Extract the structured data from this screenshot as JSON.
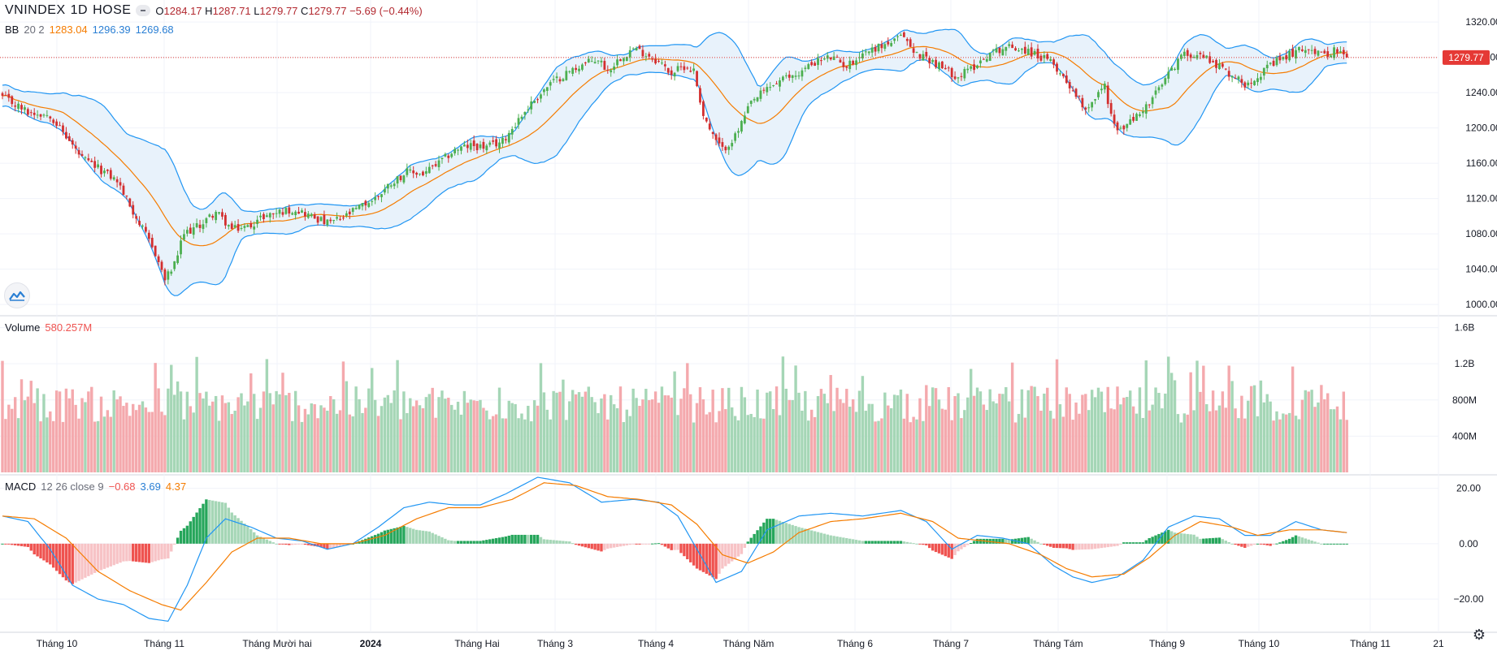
{
  "header": {
    "symbol": "VNINDEX",
    "interval": "1D",
    "exchange": "HOSE",
    "ohlc": {
      "o_label": "O",
      "o": "1284.17",
      "h_label": "H",
      "h": "1287.71",
      "l_label": "L",
      "l": "1279.77",
      "c_label": "C",
      "c": "1279.77",
      "change": "−5.69 (−0.44%)"
    }
  },
  "indicators": {
    "bb": {
      "label": "BB",
      "params": "20 2",
      "basis": "1283.04",
      "upper": "1296.39",
      "lower": "1269.68"
    },
    "volume": {
      "label": "Volume",
      "value": "580.257M"
    },
    "macd": {
      "label": "MACD",
      "params": "12 26 close 9",
      "hist": "−0.68",
      "macd": "3.69",
      "signal": "4.37"
    }
  },
  "last_price_label": "1279.77",
  "colors": {
    "up": "#26a69a",
    "down": "#ef5350",
    "candle_up": "#4caf50",
    "candle_down": "#d32f2f",
    "bb_band": "#2196f3",
    "bb_basis": "#f57c00",
    "bb_fill": "#e8f2fb",
    "vol_up": "#a5d6b6",
    "vol_down": "#f4a9ad",
    "macd_line": "#2196f3",
    "signal_line": "#f57c00",
    "hist_up_strong": "#26a65b",
    "hist_up_weak": "#a5d6b6",
    "hist_down_strong": "#ef5350",
    "hist_down_weak": "#f7c3c6",
    "price_marker": "#e53935"
  },
  "icons": {
    "logo": "tradingview-logo-icon",
    "settings": "gear-icon"
  },
  "chart_data": [
    {
      "type": "candlestick",
      "title": "VNINDEX 1D HOSE",
      "overlay": "Bollinger Bands (20, 2)",
      "y_ticks": [
        1000,
        1040,
        1080,
        1120,
        1160,
        1200,
        1240,
        1280,
        1320
      ],
      "y_tick_labels": [
        "1000.00",
        "1040.00",
        "1080.00",
        "1120.00",
        "1160.00",
        "1200.00",
        "1240.00",
        "1280.00",
        "1320.00"
      ],
      "ylim": [
        990,
        1345
      ],
      "x_tick_labels": [
        "Tháng 10",
        "Tháng 11",
        "Tháng Mười hai",
        "2024",
        "Tháng Hai",
        "Tháng 3",
        "Tháng 4",
        "Tháng Năm",
        "Tháng 6",
        "Tháng 7",
        "Tháng Tám",
        "Tháng 9",
        "Tháng 10",
        "Tháng 11",
        "21"
      ],
      "approx_close_path": [
        [
          0,
          1235
        ],
        [
          8,
          1218
        ],
        [
          15,
          1215
        ],
        [
          20,
          1190
        ],
        [
          25,
          1165
        ],
        [
          32,
          1150
        ],
        [
          36,
          1140
        ],
        [
          40,
          1112
        ],
        [
          44,
          1085
        ],
        [
          48,
          1058
        ],
        [
          51,
          1028
        ],
        [
          54,
          1045
        ],
        [
          57,
          1080
        ],
        [
          62,
          1090
        ],
        [
          67,
          1105
        ],
        [
          72,
          1085
        ],
        [
          77,
          1088
        ],
        [
          82,
          1100
        ],
        [
          87,
          1105
        ],
        [
          92,
          1108
        ],
        [
          97,
          1100
        ],
        [
          102,
          1092
        ],
        [
          107,
          1098
        ],
        [
          112,
          1110
        ],
        [
          117,
          1120
        ],
        [
          122,
          1138
        ],
        [
          127,
          1150
        ],
        [
          132,
          1148
        ],
        [
          137,
          1160
        ],
        [
          142,
          1175
        ],
        [
          147,
          1180
        ],
        [
          152,
          1178
        ],
        [
          157,
          1185
        ],
        [
          162,
          1210
        ],
        [
          167,
          1232
        ],
        [
          172,
          1250
        ],
        [
          177,
          1262
        ],
        [
          182,
          1272
        ],
        [
          187,
          1278
        ],
        [
          190,
          1265
        ],
        [
          194,
          1280
        ],
        [
          198,
          1290
        ],
        [
          202,
          1284
        ],
        [
          206,
          1275
        ],
        [
          210,
          1262
        ],
        [
          214,
          1270
        ],
        [
          217,
          1265
        ],
        [
          220,
          1215
        ],
        [
          223,
          1190
        ],
        [
          226,
          1175
        ],
        [
          230,
          1190
        ],
        [
          235,
          1228
        ],
        [
          240,
          1245
        ],
        [
          245,
          1255
        ],
        [
          250,
          1262
        ],
        [
          255,
          1275
        ],
        [
          260,
          1280
        ],
        [
          265,
          1270
        ],
        [
          270,
          1285
        ],
        [
          275,
          1292
        ],
        [
          280,
          1298
        ],
        [
          283,
          1305
        ],
        [
          286,
          1285
        ],
        [
          290,
          1280
        ],
        [
          295,
          1268
        ],
        [
          300,
          1258
        ],
        [
          305,
          1270
        ],
        [
          310,
          1285
        ],
        [
          315,
          1292
        ],
        [
          320,
          1290
        ],
        [
          325,
          1282
        ],
        [
          330,
          1272
        ],
        [
          333,
          1258
        ],
        [
          337,
          1238
        ],
        [
          340,
          1222
        ],
        [
          343,
          1235
        ],
        [
          346,
          1248
        ],
        [
          348,
          1215
        ],
        [
          350,
          1195
        ],
        [
          355,
          1210
        ],
        [
          360,
          1228
        ],
        [
          365,
          1255
        ],
        [
          370,
          1282
        ],
        [
          375,
          1285
        ],
        [
          380,
          1275
        ],
        [
          385,
          1262
        ],
        [
          390,
          1250
        ],
        [
          395,
          1262
        ],
        [
          400,
          1275
        ],
        [
          405,
          1285
        ],
        [
          410,
          1292
        ],
        [
          414,
          1282
        ],
        [
          418,
          1288
        ],
        [
          422,
          1280
        ]
      ]
    },
    {
      "type": "bar",
      "title": "Volume",
      "y_ticks": [
        400000000,
        800000000,
        1200000000,
        1600000000
      ],
      "y_tick_labels": [
        "400M",
        "800M",
        "1.2B",
        "1.6B"
      ],
      "ylim": [
        0,
        1650000000
      ],
      "last_value": 580257000
    },
    {
      "type": "line",
      "title": "MACD 12 26 close 9",
      "y_ticks": [
        -20,
        0,
        20
      ],
      "y_tick_labels": [
        "−20.00",
        "0.00",
        "20.00"
      ],
      "ylim": [
        -32,
        24
      ],
      "series": [
        {
          "name": "MACD",
          "approx_path": [
            [
              0,
              10
            ],
            [
              8,
              8
            ],
            [
              15,
              -2
            ],
            [
              22,
              -15
            ],
            [
              30,
              -20
            ],
            [
              38,
              -22
            ],
            [
              46,
              -27
            ],
            [
              52,
              -28
            ],
            [
              58,
              -15
            ],
            [
              64,
              2
            ],
            [
              70,
              9
            ],
            [
              78,
              6
            ],
            [
              86,
              2
            ],
            [
              94,
              1
            ],
            [
              102,
              -2
            ],
            [
              110,
              0
            ],
            [
              118,
              6
            ],
            [
              126,
              13
            ],
            [
              134,
              15
            ],
            [
              142,
              14
            ],
            [
              150,
              14
            ],
            [
              158,
              18
            ],
            [
              168,
              24
            ],
            [
              178,
              22
            ],
            [
              188,
              15
            ],
            [
              198,
              16
            ],
            [
              206,
              15
            ],
            [
              212,
              10
            ],
            [
              218,
              -2
            ],
            [
              224,
              -14
            ],
            [
              232,
              -10
            ],
            [
              240,
              5
            ],
            [
              250,
              10
            ],
            [
              260,
              11
            ],
            [
              270,
              10
            ],
            [
              282,
              12
            ],
            [
              290,
              8
            ],
            [
              298,
              -2
            ],
            [
              306,
              3
            ],
            [
              314,
              2
            ],
            [
              322,
              0
            ],
            [
              330,
              -8
            ],
            [
              336,
              -12
            ],
            [
              342,
              -14
            ],
            [
              350,
              -12
            ],
            [
              358,
              -6
            ],
            [
              366,
              6
            ],
            [
              374,
              10
            ],
            [
              382,
              9
            ],
            [
              390,
              3
            ],
            [
              398,
              3
            ],
            [
              406,
              8
            ],
            [
              414,
              5
            ],
            [
              422,
              4
            ]
          ]
        },
        {
          "name": "Signal",
          "approx_path": [
            [
              0,
              10
            ],
            [
              10,
              9
            ],
            [
              20,
              2
            ],
            [
              30,
              -10
            ],
            [
              40,
              -17
            ],
            [
              50,
              -22
            ],
            [
              56,
              -24
            ],
            [
              64,
              -14
            ],
            [
              72,
              -3
            ],
            [
              80,
              2
            ],
            [
              90,
              2
            ],
            [
              100,
              0
            ],
            [
              110,
              0
            ],
            [
              120,
              3
            ],
            [
              130,
              9
            ],
            [
              140,
              13
            ],
            [
              150,
              13
            ],
            [
              160,
              16
            ],
            [
              170,
              22
            ],
            [
              180,
              21
            ],
            [
              190,
              17
            ],
            [
              200,
              16
            ],
            [
              210,
              14
            ],
            [
              218,
              7
            ],
            [
              226,
              -4
            ],
            [
              234,
              -7
            ],
            [
              242,
              -3
            ],
            [
              250,
              4
            ],
            [
              260,
              8
            ],
            [
              270,
              9
            ],
            [
              282,
              11
            ],
            [
              292,
              8
            ],
            [
              300,
              2
            ],
            [
              308,
              1
            ],
            [
              316,
              0
            ],
            [
              326,
              -4
            ],
            [
              334,
              -9
            ],
            [
              342,
              -12
            ],
            [
              352,
              -11
            ],
            [
              360,
              -5
            ],
            [
              368,
              3
            ],
            [
              376,
              8
            ],
            [
              386,
              6
            ],
            [
              394,
              3
            ],
            [
              404,
              5
            ],
            [
              414,
              5
            ],
            [
              422,
              4
            ]
          ]
        }
      ]
    }
  ]
}
